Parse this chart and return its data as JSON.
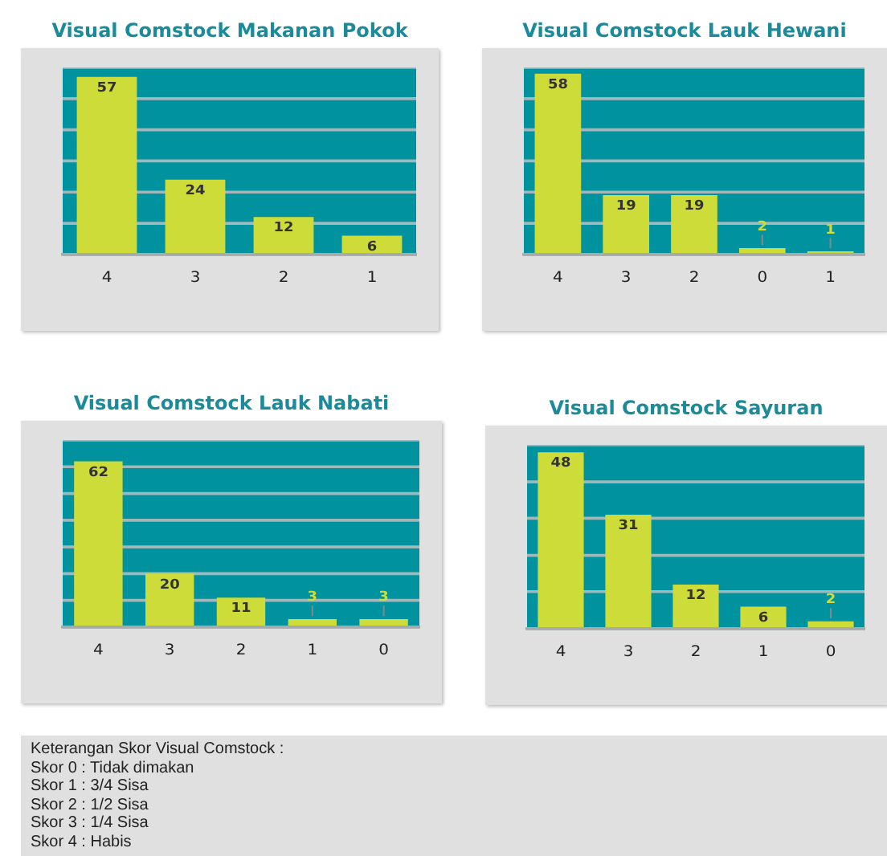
{
  "chart_data": [
    {
      "type": "bar",
      "title": "Visual Comstock Makanan Pokok",
      "categories": [
        "4",
        "3",
        "2",
        "1"
      ],
      "values": [
        57,
        24,
        12,
        6
      ],
      "color": "#cddc39",
      "data_labels": true,
      "grid": "y",
      "tick_labels": "x"
    },
    {
      "type": "bar",
      "title": "Visual Comstock Lauk Hewani",
      "categories": [
        "4",
        "3",
        "2",
        "0",
        "1"
      ],
      "values": [
        58,
        19,
        19,
        2,
        1
      ],
      "color": "#cddc39",
      "data_labels": true,
      "grid": "y",
      "tick_labels": "x"
    },
    {
      "type": "bar",
      "title": "Visual Comstock Lauk Nabati",
      "categories": [
        "4",
        "3",
        "2",
        "1",
        "0"
      ],
      "values": [
        62,
        20,
        11,
        3,
        3
      ],
      "color": "#cddc39",
      "data_labels": true,
      "grid": "y",
      "tick_labels": "x"
    },
    {
      "type": "bar",
      "title": "Visual Comstock Sayuran",
      "categories": [
        "4",
        "3",
        "2",
        "1",
        "0"
      ],
      "values": [
        48,
        31,
        12,
        6,
        2
      ],
      "color": "#cddc39",
      "data_labels": true,
      "grid": "y",
      "tick_labels": "x"
    },
    {
      "type": "other",
      "title": "Keterangan Skor Visual Comstock :",
      "annotations": [
        "Skor 0 : Tidak dimakan",
        "Skor 1 : 3/4 Sisa",
        "Skor 2 : 1/2 Sisa",
        "Skor 3 : 1/4 Sisa",
        "Skor 4 : Habis"
      ]
    }
  ]
}
